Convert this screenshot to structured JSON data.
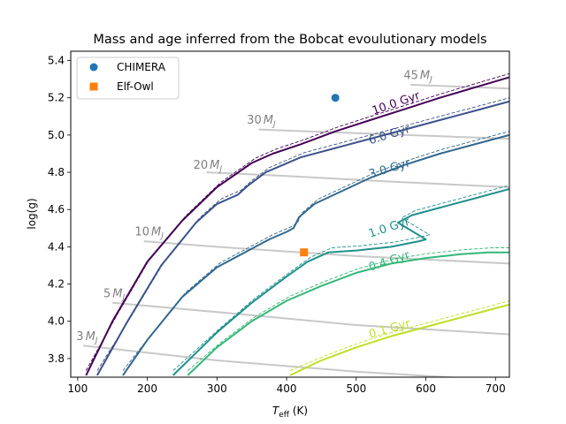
{
  "chart_data": {
    "type": "line",
    "title": "Mass and age inferred from the Bobcat evoulutionary models",
    "xlabel_main": "T",
    "xlabel_sub": "eff",
    "xlabel_unit": " (K)",
    "ylabel": "log(g)",
    "xlim": [
      90,
      720
    ],
    "ylim": [
      3.7,
      5.45
    ],
    "xticks": [
      100,
      200,
      300,
      400,
      500,
      600,
      700
    ],
    "yticks": [
      3.8,
      4.0,
      4.2,
      4.4,
      4.6,
      4.8,
      5.0,
      5.2,
      5.4
    ],
    "legend": {
      "location": "top-left",
      "entries": [
        {
          "label": "CHIMERA",
          "marker": "circle",
          "color": "#1f77b4"
        },
        {
          "label": "Elf-Owl",
          "marker": "square",
          "color": "#ff7f0e"
        }
      ]
    },
    "points": [
      {
        "name": "CHIMERA",
        "x": 470,
        "y": 5.2,
        "marker": "circle",
        "color": "#1f77b4"
      },
      {
        "name": "Elf-Owl",
        "x": 425,
        "y": 4.37,
        "marker": "square",
        "color": "#ff7f0e"
      }
    ],
    "mass_tracks": {
      "color": "#c8c8c8",
      "series": [
        {
          "label": "3",
          "sub": "J",
          "label_teff": 98,
          "label_logg": 3.9,
          "x": [
            108,
            300,
            500,
            720
          ],
          "y": [
            3.87,
            3.79,
            3.73,
            3.68
          ]
        },
        {
          "label": "5",
          "sub": "J",
          "label_teff": 137,
          "label_logg": 4.13,
          "x": [
            150,
            300,
            500,
            720
          ],
          "y": [
            4.1,
            4.05,
            3.98,
            3.93
          ]
        },
        {
          "label": "10",
          "sub": "J",
          "label_teff": 182,
          "label_logg": 4.46,
          "x": [
            195,
            300,
            500,
            720
          ],
          "y": [
            4.43,
            4.4,
            4.35,
            4.31
          ]
        },
        {
          "label": "20",
          "sub": "J",
          "label_teff": 266,
          "label_logg": 4.82,
          "x": [
            285,
            400,
            550,
            720
          ],
          "y": [
            4.8,
            4.78,
            4.75,
            4.72
          ]
        },
        {
          "label": "30",
          "sub": "J",
          "label_teff": 343,
          "label_logg": 5.06,
          "x": [
            360,
            500,
            720
          ],
          "y": [
            5.03,
            5.01,
            4.98
          ]
        },
        {
          "label": "45",
          "sub": "J",
          "label_teff": 568,
          "label_logg": 5.3,
          "x": [
            578,
            650,
            720
          ],
          "y": [
            5.27,
            5.26,
            5.25
          ]
        }
      ]
    },
    "isochrones": [
      {
        "name": "10.0 Gyr",
        "color": "#440154",
        "label_teff": 525,
        "label_logg": 5.11,
        "label_angle": -19,
        "x": [
          112,
          150,
          200,
          250,
          300,
          350,
          380,
          420,
          470,
          520,
          570,
          620,
          670,
          720
        ],
        "y": [
          3.71,
          4.0,
          4.32,
          4.54,
          4.72,
          4.85,
          4.9,
          4.95,
          5.02,
          5.08,
          5.14,
          5.2,
          5.255,
          5.31
        ]
      },
      {
        "name": "6.0 Gyr",
        "color": "#3b528b",
        "label_teff": 520,
        "label_logg": 4.95,
        "label_angle": -17,
        "x": [
          128,
          170,
          220,
          270,
          300,
          330,
          345,
          370,
          420,
          470,
          520,
          570,
          620,
          670,
          720
        ],
        "y": [
          3.71,
          3.99,
          4.3,
          4.53,
          4.63,
          4.68,
          4.73,
          4.8,
          4.88,
          4.93,
          4.98,
          5.03,
          5.08,
          5.13,
          5.18
        ]
      },
      {
        "name": "3.0 Gyr",
        "color": "#31688e",
        "label_teff": 520,
        "label_logg": 4.77,
        "label_angle": -16,
        "x": [
          165,
          200,
          250,
          300,
          340,
          375,
          400,
          410,
          418,
          440,
          480,
          520,
          570,
          620,
          670,
          720
        ],
        "y": [
          3.71,
          3.9,
          4.13,
          4.29,
          4.37,
          4.44,
          4.48,
          4.5,
          4.56,
          4.63,
          4.7,
          4.77,
          4.84,
          4.9,
          4.95,
          5.0
        ]
      },
      {
        "name": "1.0 Gyr",
        "color": "#21908d",
        "label_teff": 520,
        "label_logg": 4.45,
        "label_angle": -18,
        "x": [
          237,
          300,
          350,
          400,
          430,
          460,
          500,
          550,
          590,
          600,
          560,
          580,
          620,
          670,
          720
        ],
        "y": [
          3.71,
          3.94,
          4.1,
          4.24,
          4.32,
          4.37,
          4.38,
          4.4,
          4.43,
          4.44,
          4.53,
          4.57,
          4.61,
          4.66,
          4.71
        ]
      },
      {
        "name": "0.4 Gyr",
        "color": "#35b779",
        "label_teff": 520,
        "label_logg": 4.27,
        "label_angle": -18,
        "x": [
          258,
          300,
          350,
          400,
          450,
          500,
          550,
          600,
          650,
          690,
          720
        ],
        "y": [
          3.71,
          3.86,
          4.0,
          4.11,
          4.19,
          4.26,
          4.31,
          4.34,
          4.36,
          4.37,
          4.37
        ]
      },
      {
        "name": "0.1 Gyr",
        "color": "#bddf26",
        "label_teff": 520,
        "label_logg": 3.91,
        "label_angle": -16,
        "x": [
          405,
          450,
          500,
          550,
          600,
          650,
          700,
          720
        ],
        "y": [
          3.71,
          3.79,
          3.86,
          3.92,
          3.97,
          4.02,
          4.07,
          4.09
        ]
      }
    ]
  }
}
